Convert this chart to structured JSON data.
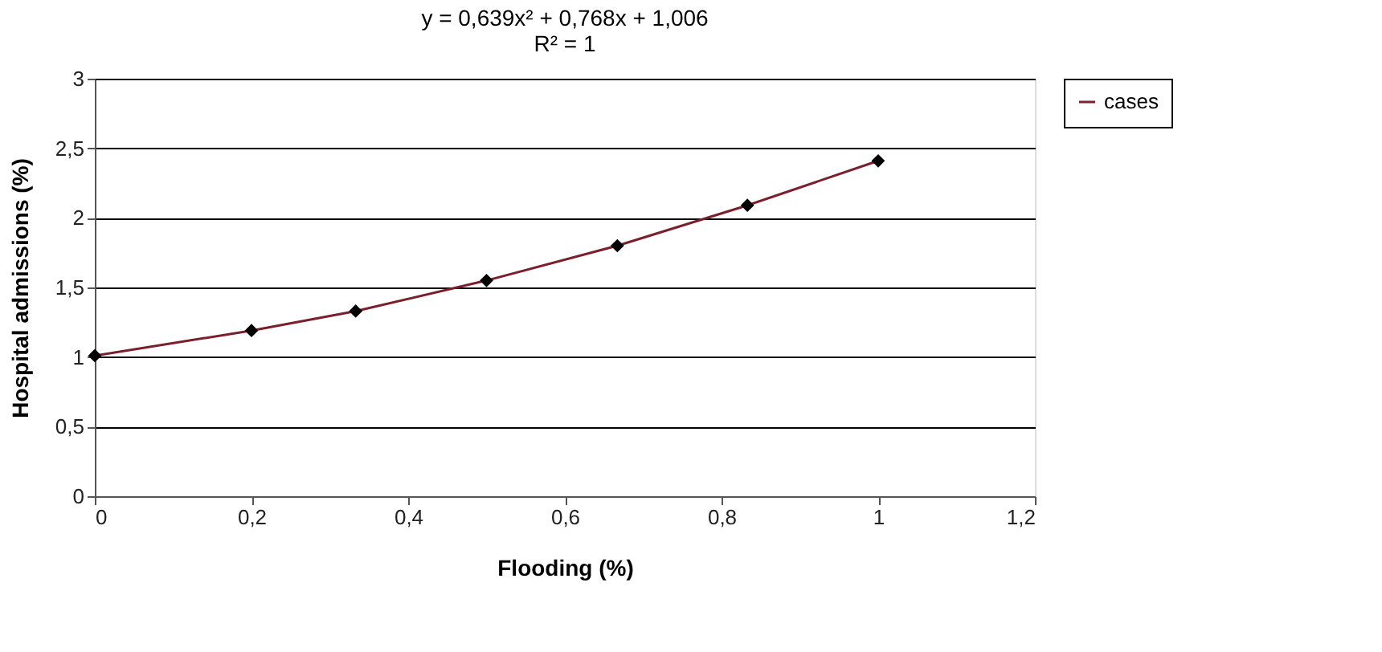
{
  "chart_data": {
    "type": "line",
    "annotations": [
      "y = 0,639x² + 0,768x + 1,006",
      "R² = 1"
    ],
    "xlabel": "Flooding (%)",
    "ylabel": "Hospital admissions (%)",
    "x": [
      0,
      0.2,
      0.333,
      0.5,
      0.667,
      0.833,
      1
    ],
    "series": [
      {
        "name": "cases",
        "color": "#7a1f2b",
        "values": [
          1.01,
          1.19,
          1.33,
          1.55,
          1.8,
          2.09,
          2.41
        ]
      }
    ],
    "xlim": [
      0,
      1.2
    ],
    "xticks": [
      0,
      {
        "value": 0.2,
        "label": "0,2"
      },
      {
        "value": 0.4,
        "label": "0,4"
      },
      {
        "value": 0.6,
        "label": "0,6"
      },
      {
        "value": 0.8,
        "label": "0,8"
      },
      1,
      {
        "value": 1.2,
        "label": "1,2"
      }
    ],
    "ylim": [
      0,
      3
    ],
    "yticks": [
      0,
      {
        "value": 0.5,
        "label": "0,5"
      },
      1,
      {
        "value": 1.5,
        "label": "1,5"
      },
      2,
      {
        "value": 2.5,
        "label": "2,5"
      },
      3
    ],
    "grid": "y",
    "legend": "right",
    "marker": "diamond",
    "line_style": "solid"
  }
}
